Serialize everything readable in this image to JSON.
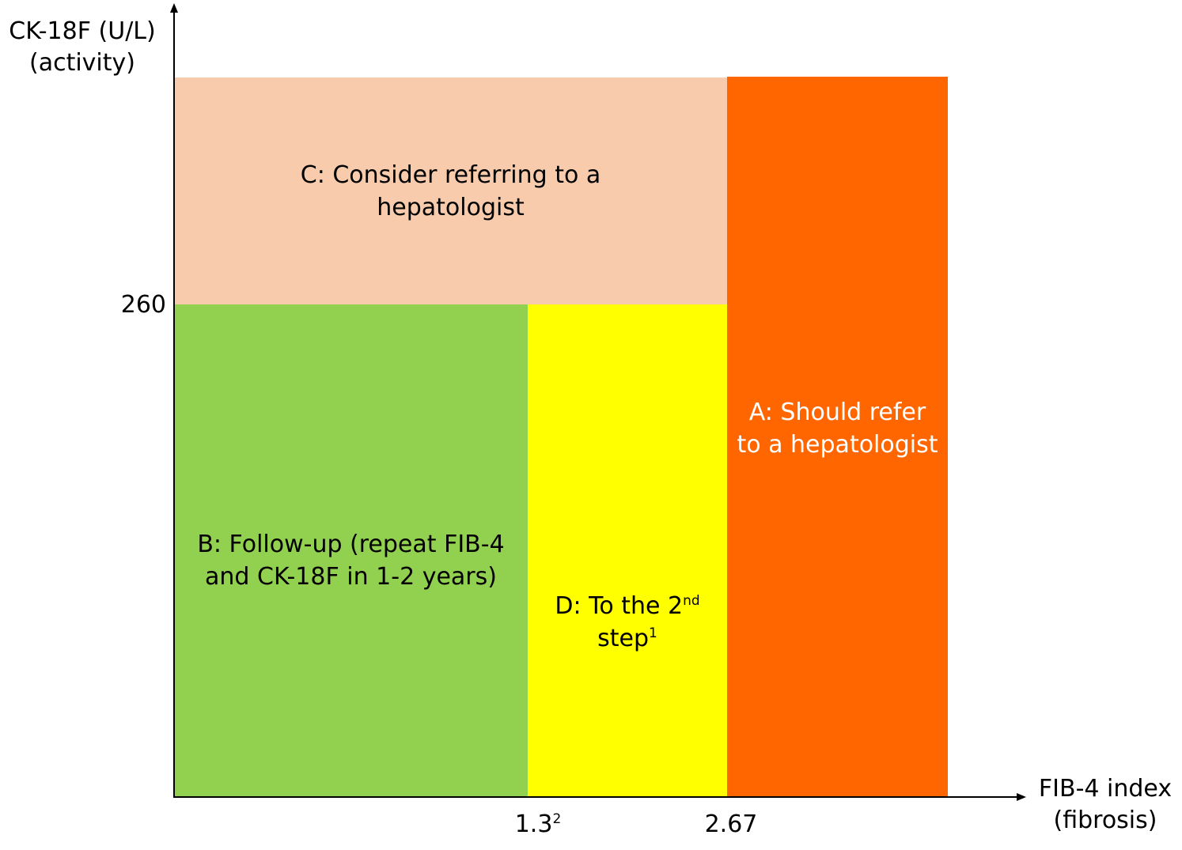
{
  "colors": {
    "region_a": "#ff6600",
    "region_b": "#92d050",
    "region_c": "#f7cbac",
    "region_d": "#ffff00",
    "axis": "#000000"
  },
  "y_axis": {
    "title_line1": "CK-18F (U/L)",
    "title_line2": "(activity)",
    "tick_260": "260"
  },
  "x_axis": {
    "title_line1": "FIB-4 index",
    "title_line2": "(fibrosis)",
    "tick_13": "1.3",
    "tick_13_sup": "2",
    "tick_267": "2.67"
  },
  "regions": {
    "a": {
      "line1": "A: Should refer",
      "line2": "to a hepatologist"
    },
    "b": {
      "line1": "B: Follow-up (repeat FIB-4",
      "line2": "and CK-18F in 1-2 years)"
    },
    "c": {
      "line1": "C: Consider referring to a",
      "line2": "hepatologist"
    },
    "d": {
      "line1_main": "D: To the 2",
      "line1_sup": "nd",
      "line2_main": "step",
      "line2_sup": "1"
    }
  }
}
